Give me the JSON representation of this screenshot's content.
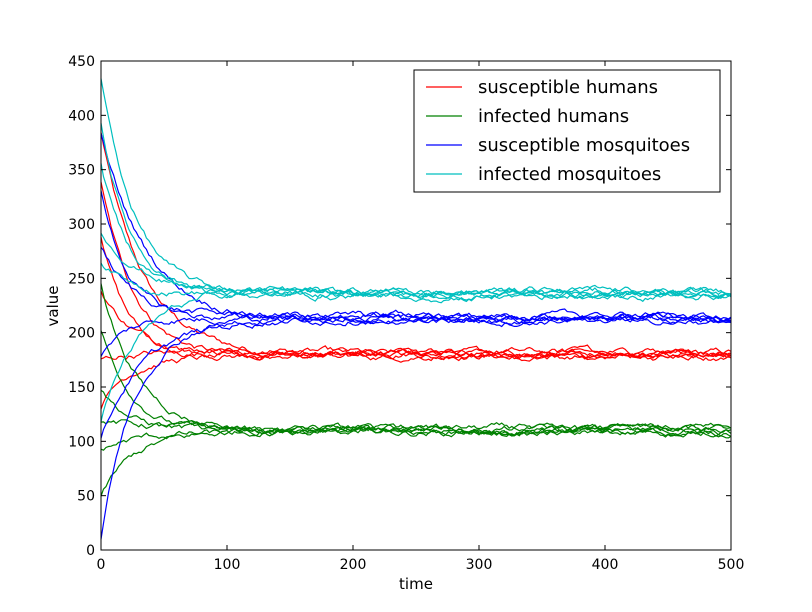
{
  "chart_data": {
    "type": "line",
    "xlabel": "time",
    "ylabel": "value",
    "xlim": [
      0,
      500
    ],
    "ylim": [
      0,
      450
    ],
    "xticks": [
      0,
      100,
      200,
      300,
      400,
      500
    ],
    "yticks": [
      0,
      50,
      100,
      150,
      200,
      250,
      300,
      350,
      400,
      450
    ],
    "grid": false,
    "legend_position": "top-right",
    "runs_per_series": 6,
    "series": [
      {
        "name": "susceptible humans",
        "color": "#ff0000",
        "equilibrium": 180,
        "starts": [
          385,
          335,
          290,
          240,
          175,
          130
        ]
      },
      {
        "name": "infected humans",
        "color": "#008000",
        "equilibrium": 110,
        "starts": [
          245,
          200,
          150,
          120,
          90,
          48
        ]
      },
      {
        "name": "susceptible mosquitoes",
        "color": "#0000ff",
        "equilibrium": 213,
        "starts": [
          380,
          330,
          280,
          175,
          100,
          12
        ]
      },
      {
        "name": "infected mosquitoes",
        "color": "#00bfbf",
        "equilibrium": 236,
        "starts": [
          435,
          395,
          355,
          290,
          265,
          120
        ]
      }
    ]
  }
}
